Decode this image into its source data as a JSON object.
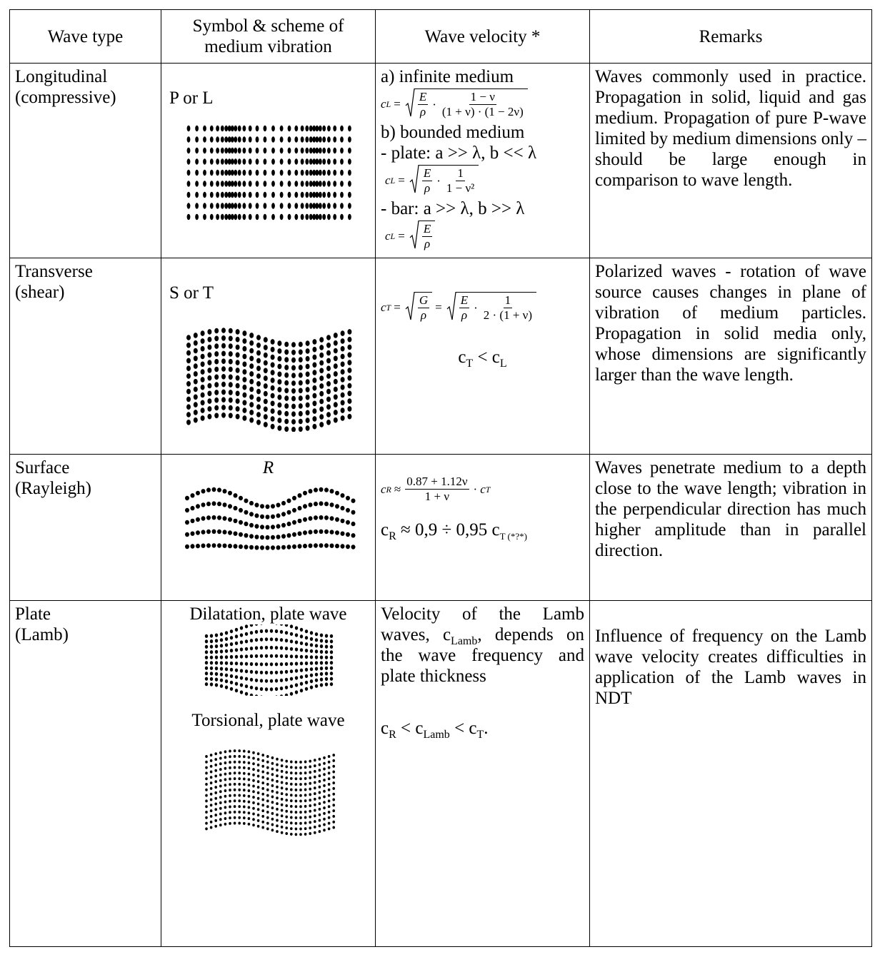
{
  "table": {
    "header": [
      "Wave type",
      "Symbol & scheme of medium vibration",
      "Wave velocity *",
      "Remarks"
    ],
    "rows": [
      {
        "wave_type": [
          "Longitudinal",
          "(compressive)"
        ],
        "symbol": [
          "P or L"
        ],
        "velocity": [
          {
            "text": "a) infinite medium"
          },
          {
            "formula": [
              {
                "var": "c",
                "sub": "L"
              },
              {
                "op": "="
              },
              {
                "sqrt": [
                  {
                    "num": "E",
                    "den": "ρ"
                  },
                  {
                    "op": "·"
                  },
                  {
                    "num": "1 − ν",
                    "den": "(1 + ν) · (1 − 2ν)"
                  }
                ]
              }
            ]
          },
          {
            "text": "b) bounded medium"
          },
          {
            "text": "- plate: a >> λ, b << λ"
          },
          {
            "formula": [
              {
                "var": "c",
                "sub": "L"
              },
              {
                "op": "="
              },
              {
                "sqrt": [
                  {
                    "num": "E",
                    "den": "ρ"
                  },
                  {
                    "op": "·"
                  },
                  {
                    "num": "1",
                    "den": "1 − ν²"
                  }
                ]
              }
            ]
          },
          {
            "text": "- bar: a >> λ, b >> λ"
          },
          {
            "formula": [
              {
                "var": "c",
                "sub": "L"
              },
              {
                "op": "="
              },
              {
                "sqrt": [
                  {
                    "num": "E",
                    "den": "ρ"
                  }
                ]
              }
            ]
          }
        ],
        "remarks": "Waves commonly used in practice. Propagation in solid, liquid and gas medium. Propagation of pure P-wave limited by medium dimensions only – should be large enough in comparison to wave length."
      },
      {
        "wave_type": [
          "Transverse",
          "(shear)"
        ],
        "symbol": [
          "S or T"
        ],
        "velocity": [
          {
            "formula": [
              {
                "var": "c",
                "sub": "T"
              },
              {
                "op": "="
              },
              {
                "sqrt": [
                  {
                    "num": "G",
                    "den": "ρ"
                  }
                ]
              },
              {
                "op": "="
              },
              {
                "sqrt": [
                  {
                    "num": "E",
                    "den": "ρ"
                  },
                  {
                    "op": "·"
                  },
                  {
                    "num": "1",
                    "den": "2 · (1 + ν)"
                  }
                ]
              }
            ]
          },
          {
            "rich": [
              {
                "text": "c"
              },
              {
                "sub": "T"
              },
              {
                "text": " < c"
              },
              {
                "sub": "L"
              }
            ]
          }
        ],
        "remarks": "Polarized waves - rotation of wave source causes changes in plane of vibration of medium particles. Propagation in solid media only, whose dimensions are significantly larger than the wave length."
      },
      {
        "wave_type": [
          "Surface",
          "(Rayleigh)"
        ],
        "symbol": [
          "R"
        ],
        "velocity": [
          {
            "formula": [
              {
                "var": "c",
                "sub": "R"
              },
              {
                "op": "≈"
              },
              {
                "num": "0.87 + 1.12ν",
                "den": "1 + ν"
              },
              {
                "op": "·"
              },
              {
                "var": "c",
                "sub": "T"
              }
            ]
          },
          {
            "rich": [
              {
                "text": "c"
              },
              {
                "sub": "R"
              },
              {
                "text": "  ≈ 0,9 ÷ 0,95 c"
              },
              {
                "sub": "T (*?*)"
              }
            ]
          }
        ],
        "remarks": "Waves penetrate medium to a depth close to the wave length; vibration in the perpendicular direction has much higher amplitude than in parallel direction."
      },
      {
        "wave_type": [
          "Plate",
          "(Lamb)"
        ],
        "symbol": [
          "Dilatation, plate wave",
          "Torsional, plate wave"
        ],
        "velocity": [
          {
            "rich": [
              {
                "text": "Velocity of the Lamb waves, c"
              },
              {
                "sub": "Lamb"
              },
              {
                "text": ", depends on the wave frequency and plate thickness"
              }
            ]
          },
          {
            "rich": [
              {
                "text": "c"
              },
              {
                "sub": "R"
              },
              {
                "text": " < c"
              },
              {
                "sub": "Lamb"
              },
              {
                "text": "  < c"
              },
              {
                "sub": "T"
              },
              {
                "text": "."
              }
            ]
          }
        ],
        "remarks": "Influence of frequency on the Lamb wave velocity creates difficulties in application of the Lamb waves in NDT"
      }
    ]
  }
}
